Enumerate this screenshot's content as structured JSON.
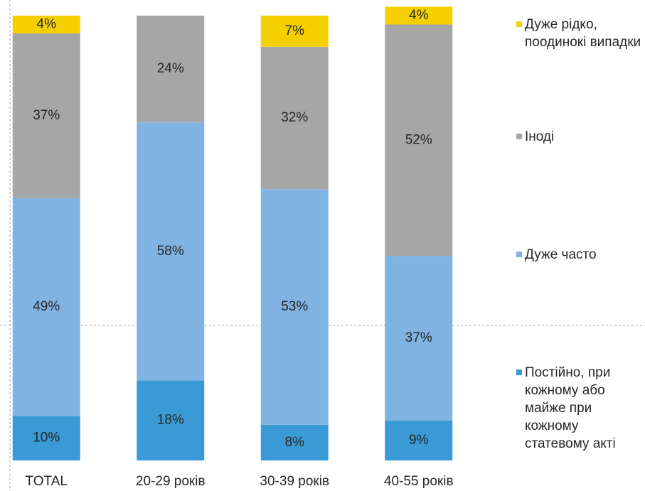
{
  "chart_data": {
    "type": "stacked_bar",
    "categories": [
      "TOTAL",
      "20-29 років",
      "30-39 років",
      "40-55 років"
    ],
    "ylim": [
      0,
      100
    ],
    "series": [
      {
        "name": "Постійно, при кожному або майже при кожному статевому акті",
        "color": "#3a9ad6",
        "values": [
          10,
          18,
          8,
          9
        ],
        "value_labels": [
          "10%",
          "18%",
          "8%",
          "9%"
        ]
      },
      {
        "name": "Дуже часто",
        "color": "#80b3e1",
        "values": [
          49,
          58,
          53,
          37
        ],
        "value_labels": [
          "49%",
          "58%",
          "53%",
          "37%"
        ]
      },
      {
        "name": "Іноді",
        "color": "#a6a6a6",
        "values": [
          37,
          24,
          32,
          52
        ],
        "value_labels": [
          "37%",
          "24%",
          "32%",
          "52%"
        ]
      },
      {
        "name": "Дуже рідко, поодинокі випадки",
        "color": "#f5d000",
        "values": [
          4,
          null,
          7,
          4
        ],
        "value_labels": [
          "4%",
          null,
          "7%",
          "4%"
        ]
      }
    ]
  }
}
